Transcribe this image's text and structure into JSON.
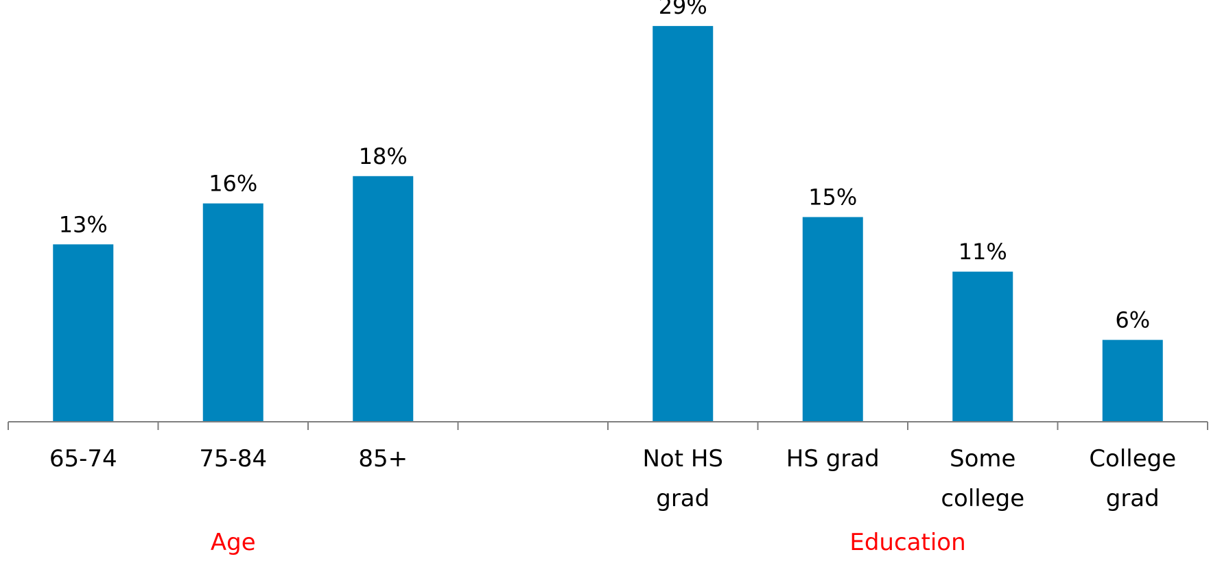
{
  "chart_data": {
    "type": "bar",
    "title": "",
    "xlabel": "",
    "ylabel": "",
    "ylim": [
      0,
      30
    ],
    "grid": false,
    "legend": "none",
    "bar_color": "#0085BD",
    "group_label_color": "#FF0000",
    "categories": [
      {
        "lines": [
          "65-74"
        ],
        "value": 13,
        "label": "13%"
      },
      {
        "lines": [
          "75-84"
        ],
        "value": 16,
        "label": "16%"
      },
      {
        "lines": [
          "85+"
        ],
        "value": 18,
        "label": "18%"
      },
      {
        "lines": [],
        "value": null,
        "label": ""
      },
      {
        "lines": [
          "Not HS",
          "grad"
        ],
        "value": 29,
        "label": "29%"
      },
      {
        "lines": [
          "HS grad"
        ],
        "value": 15,
        "label": "15%"
      },
      {
        "lines": [
          "Some",
          "college"
        ],
        "value": 11,
        "label": "11%"
      },
      {
        "lines": [
          "College",
          "grad"
        ],
        "value": 6,
        "label": "6%"
      }
    ],
    "groups": [
      {
        "label": "Age",
        "start": 0,
        "end": 2
      },
      {
        "label": "Education",
        "start": 4,
        "end": 7
      }
    ]
  }
}
